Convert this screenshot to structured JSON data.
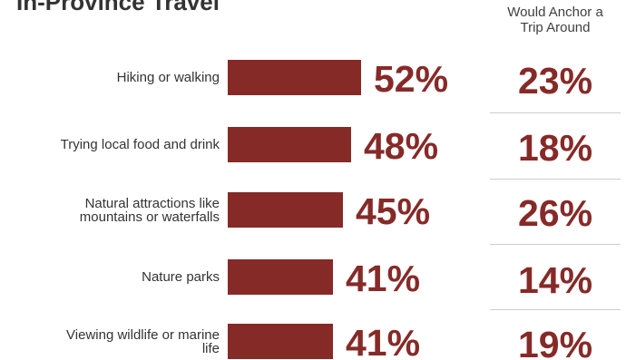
{
  "chart_data": {
    "type": "bar",
    "title": "In-Province Travel",
    "categories": [
      "Hiking or walking",
      "Trying local food and drink",
      "Natural attractions like mountains or waterfalls",
      "Nature parks",
      "Viewing wildlife or marine life"
    ],
    "series": [
      {
        "values": [
          52,
          48,
          45,
          41,
          41
        ],
        "labels": [
          "52%",
          "48%",
          "45%",
          "41%",
          "41%"
        ]
      },
      {
        "name": "Would Anchor a Trip Around",
        "values": [
          23,
          18,
          26,
          14,
          19
        ],
        "labels": [
          "23%",
          "18%",
          "26%",
          "14%",
          "19%"
        ]
      }
    ],
    "label_lines": [
      [
        "Hiking or walking"
      ],
      [
        "Trying local food and drink"
      ],
      [
        "Natural attractions like",
        "mountains or waterfalls"
      ],
      [
        "Nature parks"
      ],
      [
        "Viewing wildlife or marine",
        "life"
      ]
    ],
    "anchor_header_lines": [
      "Would Anchor a",
      "Trip Around"
    ],
    "bar_color": "#862a28",
    "value_color": "#862a28",
    "divider_color": "#cccccc",
    "orientation": "horizontal",
    "legend": "none",
    "grid": false
  }
}
